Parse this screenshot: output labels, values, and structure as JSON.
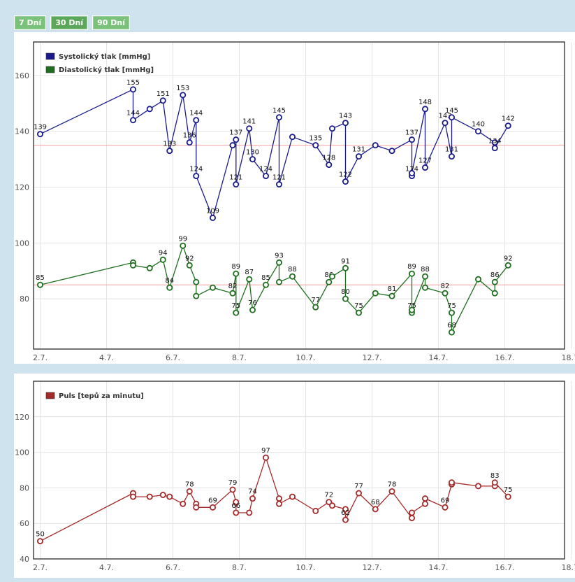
{
  "tabs": [
    {
      "label": "7 Dní"
    },
    {
      "label": "30 Dní"
    },
    {
      "label": "90 Dní"
    }
  ],
  "chart_data": [
    {
      "type": "line",
      "x_ticks": [
        "2.7.",
        "4.7.",
        "6.7.",
        "8.7.",
        "10.7.",
        "12.7.",
        "14.7.",
        "16.7.",
        "18.7."
      ],
      "xlim": [
        2.5,
        18.5
      ],
      "ylim": [
        62,
        172
      ],
      "y_ticks": [
        80,
        100,
        120,
        140,
        160
      ],
      "reference_lines": [
        135,
        85
      ],
      "reference_color": "#f0a0a0",
      "grid": true,
      "legend_position": "top-left",
      "series": [
        {
          "name": "Systolický tlak [mmHg]",
          "color": "#1a1a8c",
          "x": [
            2.7,
            5.5,
            5.5,
            6.0,
            6.4,
            6.6,
            7.0,
            7.2,
            7.4,
            7.4,
            7.9,
            8.5,
            8.6,
            8.6,
            9.0,
            9.1,
            9.5,
            9.9,
            9.9,
            10.3,
            11.0,
            11.4,
            11.5,
            11.9,
            11.9,
            12.3,
            12.8,
            13.3,
            13.9,
            13.9,
            13.9,
            14.3,
            14.3,
            14.9,
            15.1,
            15.1,
            15.9,
            16.4,
            16.4,
            16.8
          ],
          "values": [
            139,
            155,
            144,
            148,
            151,
            133,
            153,
            136,
            144,
            124,
            109,
            135,
            137,
            121,
            141,
            130,
            124,
            145,
            121,
            138,
            135,
            128,
            141,
            143,
            122,
            131,
            135,
            133,
            137,
            124,
            125,
            148,
            127,
            143,
            131,
            145,
            140,
            136,
            134,
            142
          ],
          "labels": [
            139,
            155,
            144,
            null,
            151,
            133,
            153,
            136,
            144,
            124,
            109,
            null,
            137,
            121,
            141,
            130,
            124,
            145,
            121,
            null,
            135,
            128,
            null,
            143,
            122,
            131,
            null,
            null,
            137,
            124,
            null,
            148,
            127,
            143,
            131,
            145,
            140,
            null,
            134,
            142
          ]
        },
        {
          "name": "Diastolický tlak [mmHg]",
          "color": "#1f6e1f",
          "x": [
            2.7,
            5.5,
            5.5,
            6.0,
            6.4,
            6.6,
            7.0,
            7.2,
            7.4,
            7.4,
            7.9,
            8.5,
            8.6,
            8.6,
            9.0,
            9.1,
            9.5,
            9.9,
            9.9,
            10.3,
            11.0,
            11.4,
            11.5,
            11.9,
            11.9,
            12.3,
            12.8,
            13.3,
            13.9,
            13.9,
            13.9,
            14.3,
            14.3,
            14.9,
            15.1,
            15.1,
            15.9,
            16.4,
            16.4,
            16.8
          ],
          "values": [
            85,
            93,
            92,
            91,
            94,
            84,
            99,
            92,
            86,
            81,
            84,
            82,
            89,
            75,
            87,
            76,
            85,
            93,
            86,
            88,
            77,
            86,
            88,
            91,
            80,
            75,
            82,
            81,
            89,
            75,
            76,
            88,
            84,
            82,
            75,
            68,
            87,
            82,
            86,
            92
          ],
          "labels": [
            85,
            null,
            null,
            null,
            94,
            84,
            99,
            92,
            null,
            null,
            null,
            82,
            89,
            75,
            87,
            76,
            85,
            93,
            null,
            88,
            77,
            86,
            null,
            91,
            80,
            75,
            null,
            81,
            89,
            75,
            null,
            88,
            null,
            82,
            75,
            68,
            null,
            null,
            86,
            92
          ]
        }
      ]
    },
    {
      "type": "line",
      "x_ticks": [
        "2.7.",
        "4.7.",
        "6.7.",
        "8.7.",
        "10.7.",
        "12.7.",
        "14.7.",
        "16.7.",
        "18.7."
      ],
      "xlim": [
        2.5,
        18.5
      ],
      "ylim": [
        40,
        140
      ],
      "y_ticks": [
        40,
        60,
        80,
        100,
        120
      ],
      "grid": true,
      "legend_position": "top-left",
      "series": [
        {
          "name": "Puls [tepů za minutu]",
          "color": "#a52a2a",
          "x": [
            2.7,
            5.5,
            5.5,
            6.0,
            6.4,
            6.6,
            7.0,
            7.2,
            7.4,
            7.4,
            7.9,
            8.5,
            8.6,
            8.6,
            9.0,
            9.1,
            9.5,
            9.9,
            9.9,
            10.3,
            11.0,
            11.4,
            11.5,
            11.9,
            11.9,
            12.3,
            12.8,
            13.3,
            13.9,
            13.9,
            14.3,
            14.3,
            14.9,
            15.1,
            15.1,
            15.9,
            16.4,
            16.4,
            16.8
          ],
          "values": [
            50,
            77,
            75,
            75,
            76,
            75,
            71,
            78,
            71,
            69,
            69,
            79,
            72,
            66,
            66,
            74,
            97,
            74,
            71,
            75,
            67,
            72,
            70,
            68,
            62,
            77,
            68,
            78,
            63,
            66,
            71,
            74,
            69,
            82,
            83,
            81,
            81,
            83,
            75
          ],
          "labels": [
            50,
            null,
            null,
            null,
            null,
            null,
            null,
            78,
            null,
            null,
            69,
            79,
            null,
            66,
            null,
            74,
            97,
            null,
            null,
            null,
            null,
            72,
            null,
            null,
            62,
            77,
            68,
            78,
            null,
            null,
            null,
            null,
            69,
            null,
            null,
            null,
            null,
            83,
            75
          ]
        }
      ]
    }
  ]
}
